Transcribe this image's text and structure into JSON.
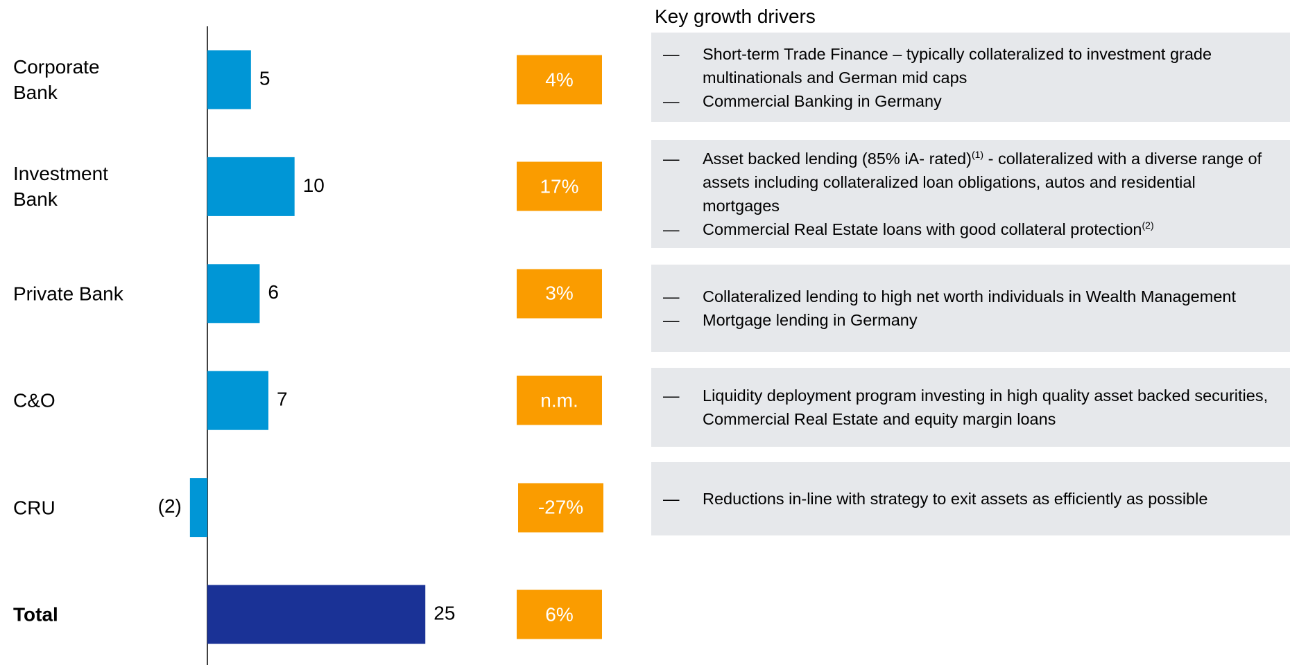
{
  "chart_data": {
    "type": "bar",
    "orientation": "horizontal",
    "categories": [
      "Corporate Bank",
      "Investment Bank",
      "Private Bank",
      "C&O",
      "CRU",
      "Total"
    ],
    "values": [
      5,
      10,
      6,
      7,
      -2,
      25
    ],
    "value_labels": [
      "5",
      "10",
      "6",
      "7",
      "(2)",
      "25"
    ],
    "colors": [
      "#0096d6",
      "#0096d6",
      "#0096d6",
      "#0096d6",
      "#0096d6",
      "#1a3296"
    ]
  },
  "growth": {
    "labels": [
      "4%",
      "17%",
      "3%",
      "n.m.",
      "-27%",
      "6%"
    ],
    "color": "#fa9c00"
  },
  "drivers": {
    "title": "Key growth drivers",
    "panels": [
      {
        "bullets": [
          [
            {
              "text": "Short-term Trade Finance – typically collateralized to investment grade multinationals and German mid caps"
            }
          ],
          [
            {
              "text": "Commercial Banking in Germany"
            }
          ]
        ]
      },
      {
        "bullets": [
          [
            {
              "text": "Asset backed lending (85% iA- rated)"
            },
            {
              "sup": "(1)"
            },
            {
              "text": " - collateralized with a diverse range of assets including collateralized loan obligations, autos and residential mortgages"
            }
          ],
          [
            {
              "text": "Commercial Real Estate loans with good collateral protection"
            },
            {
              "sup": "(2)"
            }
          ]
        ]
      },
      {
        "bullets": [
          [
            {
              "text": "Collateralized lending to high net worth individuals in Wealth Management"
            }
          ],
          [
            {
              "text": "Mortgage lending in Germany"
            }
          ]
        ]
      },
      {
        "bullets": [
          [
            {
              "text": "Liquidity deployment program investing in high quality asset backed securities, Commercial Real Estate and equity margin loans"
            }
          ]
        ]
      },
      {
        "bullets": [
          [
            {
              "text": "Reductions in-line with strategy to exit assets as efficiently as possible"
            }
          ]
        ]
      }
    ]
  }
}
